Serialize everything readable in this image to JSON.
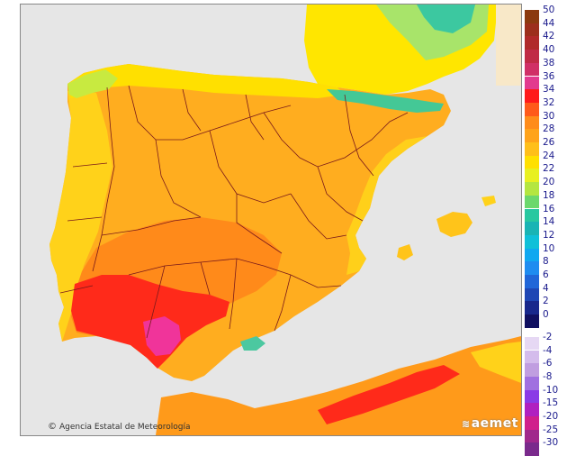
{
  "map": {
    "credit": "Agencia Estatal de Meteorología",
    "logo": "aemet"
  },
  "legend": {
    "positive": [
      {
        "label": "50",
        "color": "#8b3a0f"
      },
      {
        "label": "44",
        "color": "#9c2f1c"
      },
      {
        "label": "42",
        "color": "#b02a2a"
      },
      {
        "label": "40",
        "color": "#c02b46"
      },
      {
        "label": "38",
        "color": "#d03066"
      },
      {
        "label": "36",
        "color": "#e23a8e"
      },
      {
        "label": "34",
        "color": "#ff1a1a"
      },
      {
        "label": "32",
        "color": "#ff5a1a"
      },
      {
        "label": "30",
        "color": "#ff8c1a"
      },
      {
        "label": "28",
        "color": "#ffa31a"
      },
      {
        "label": "26",
        "color": "#ffbf1a"
      },
      {
        "label": "24",
        "color": "#ffe000"
      },
      {
        "label": "22",
        "color": "#e8f020"
      },
      {
        "label": "20",
        "color": "#b4e640"
      },
      {
        "label": "18",
        "color": "#6cd86c"
      },
      {
        "label": "16",
        "color": "#28c8a0"
      },
      {
        "label": "14",
        "color": "#1ab4b4"
      },
      {
        "label": "12",
        "color": "#10c0d8"
      },
      {
        "label": "10",
        "color": "#10a8f0"
      },
      {
        "label": "8",
        "color": "#1e8cf0"
      },
      {
        "label": "6",
        "color": "#2066d8"
      },
      {
        "label": "4",
        "color": "#1e46b4"
      },
      {
        "label": "2",
        "color": "#18288c"
      },
      {
        "label": "0",
        "color": "#101060"
      }
    ],
    "negative": [
      {
        "label": "-2",
        "color": "#e6d8f4"
      },
      {
        "label": "-4",
        "color": "#d4bcec"
      },
      {
        "label": "-6",
        "color": "#c09ee0"
      },
      {
        "label": "-8",
        "color": "#a070e0"
      },
      {
        "label": "-10",
        "color": "#8a3ae6"
      },
      {
        "label": "-15",
        "color": "#b020c0"
      },
      {
        "label": "-20",
        "color": "#d0208c"
      },
      {
        "label": "-25",
        "color": "#a0288c"
      },
      {
        "label": "-30",
        "color": "#7a2a8c"
      }
    ]
  }
}
